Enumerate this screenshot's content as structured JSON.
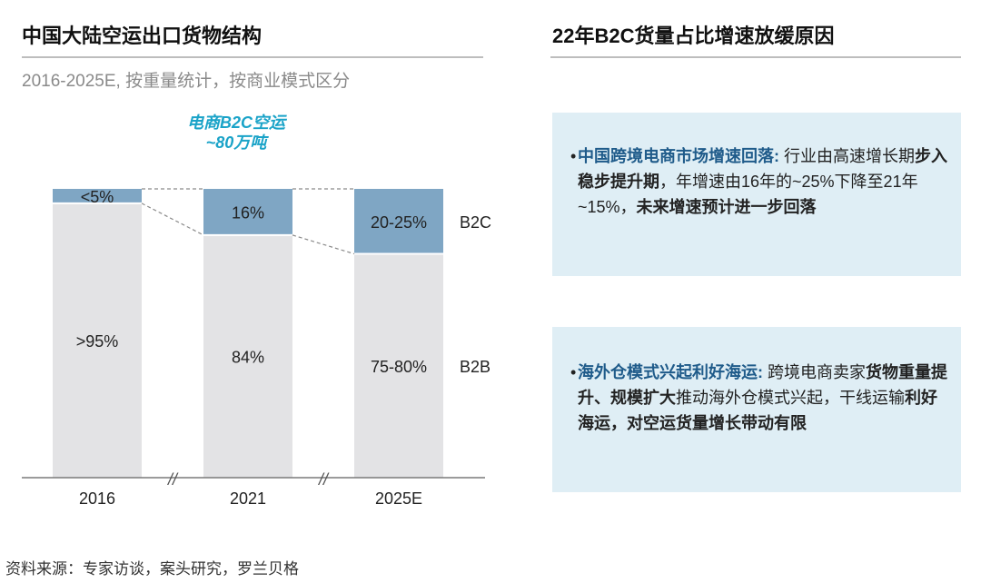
{
  "left": {
    "title": "中国大陆空运出口货物结构",
    "subtitle": "2016-2025E, 按重量统计，按商业模式区分",
    "annotation_line1": "电商B2C空运",
    "annotation_line2": "~80万吨"
  },
  "right": {
    "title": "22年B2C货量占比增速放缓原因",
    "points": [
      {
        "lead": "中国跨境电商市场增速回落:",
        "segments": [
          {
            "text": " 行业由高速增长期",
            "bold": false
          },
          {
            "text": "步入稳步提升期",
            "bold": true
          },
          {
            "text": "，年增速由16年的~25%下降至21年~15%，",
            "bold": false
          },
          {
            "text": "未来增速预计进一步回落",
            "bold": true
          }
        ]
      },
      {
        "lead": "海外仓模式兴起利好海运:",
        "segments": [
          {
            "text": " 跨境电商卖家",
            "bold": false
          },
          {
            "text": "货物重量提升、规模扩大",
            "bold": true
          },
          {
            "text": "推动海外仓模式兴起，干线运输",
            "bold": false
          },
          {
            "text": "利好海运，对空运货量增长带动有限",
            "bold": true
          }
        ]
      }
    ]
  },
  "source": "资料来源：专家访谈，案头研究，罗兰贝格",
  "colors": {
    "b2c": "#7fa6c4",
    "b2b": "#e3e3e5",
    "accent": "#1aa3c8",
    "box": "#dfeef5",
    "lead": "#1f5b8a"
  },
  "chart_data": {
    "type": "bar",
    "stacked": true,
    "normalized": true,
    "categories": [
      "2016",
      "2021",
      "2025E"
    ],
    "series": [
      {
        "name": "B2B",
        "values": [
          95,
          84,
          77.5
        ],
        "labels": [
          ">95%",
          "84%",
          "75-80%"
        ]
      },
      {
        "name": "B2C",
        "values": [
          5,
          16,
          22.5
        ],
        "labels": [
          "<5%",
          "16%",
          "20-25%"
        ]
      }
    ],
    "ylim": [
      0,
      100
    ],
    "axis_break_marker": "//",
    "legend": "right of bars"
  }
}
